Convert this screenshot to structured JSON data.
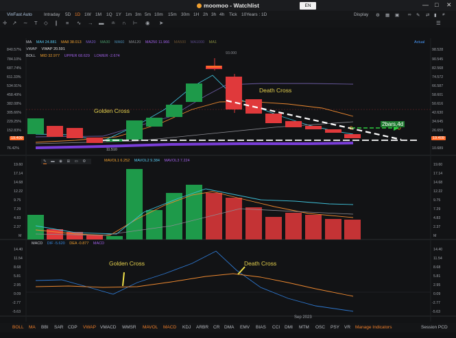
{
  "app": {
    "title": "moomoo - Watchlist",
    "lang_badge": "EN"
  },
  "header": {
    "stock_name": "VinFast Auto",
    "timeframes": [
      "Intraday",
      "5D",
      "1D",
      "1W",
      "1M",
      "1Q",
      "1Y",
      "1m",
      "3m",
      "5m",
      "10m",
      "15m",
      "30m",
      "1H",
      "2h",
      "3h",
      "4h",
      "Tick"
    ],
    "active_timeframe": "1D",
    "range_select": "10Years : 1D",
    "display_label": "Display"
  },
  "indicators": {
    "ma_label": "MA",
    "ma4": "MA4 24.881",
    "ma8": "MA8 38.013",
    "ma_greyed": [
      "MA20",
      "MA30",
      "MA60",
      "MA120"
    ],
    "ma250": "MA250 11.966",
    "ma_greyed2": [
      "MA500",
      "MA1000",
      "MA1"
    ],
    "actual_label": "Actual",
    "vwap_label": "VWAP",
    "vwap_value": "VWAP 20.591",
    "boll_label": "BOLL",
    "boll_mid": "MID 32.977",
    "boll_upper": "UPPER 68.629",
    "boll_lower": "LOWER -2.674",
    "mavol_label": "MAVOL1 6.252",
    "mavol2": "MAVOL2 9.384",
    "mavol3": "MAVOL3 7.224",
    "macd_label": "MACD",
    "dif": "DIF -5.620",
    "dea": "DEA -0.877",
    "macd_value": "MACD"
  },
  "price_axis_left": [
    "840.57%",
    "784.10%",
    "687.74%",
    "611.33%",
    "534.91%",
    "458.49%",
    "382.08%",
    "305.66%",
    "229.25%",
    "152.83%",
    "76.42%"
  ],
  "price_axis_right": [
    "98.528",
    "90.545",
    "82.568",
    "74.572",
    "66.587",
    "58.601",
    "50.616",
    "42.630",
    "34.645",
    "26.659",
    "18.674",
    "10.689"
  ],
  "price_tags": {
    "left": "19.409",
    "right": "19.409"
  },
  "price_marker": "93.000",
  "low_marker": "11.510",
  "vol_axis": [
    "19.60",
    "17.14",
    "14.68",
    "12.22",
    "9.75",
    "7.29",
    "4.83",
    "2.37",
    "M"
  ],
  "macd_axis": [
    "14.40",
    "11.54",
    "8.68",
    "5.81",
    "2.95",
    "0.09",
    "-2.77",
    "-5.63"
  ],
  "annotations": {
    "golden_cross_top": "Golden Cross",
    "death_cross_top": "Death Cross",
    "golden_cross_macd": "Golden Cross",
    "death_cross_macd": "Death Cross",
    "bars": "2bars,4d"
  },
  "xaxis_label": "Sep 2023",
  "bottom_indicators": [
    "BOLL",
    "MA",
    "BBI",
    "SAR",
    "CDP",
    "VWAP",
    "VMACD",
    "WMSR",
    "MAVOL",
    "MACD",
    "KDJ",
    "ARBR",
    "CR",
    "DMA",
    "EMV",
    "BIAS",
    "CCI",
    "DMI",
    "MTM",
    "OSC",
    "PSY",
    "VR"
  ],
  "bottom_active": [
    "BOLL",
    "MA",
    "VWAP",
    "MAVOL",
    "MACD"
  ],
  "manage_indicators": "Manage Indicators",
  "session": "Session PCD",
  "colors": {
    "up": "#1e9a4a",
    "down": "#e0393b",
    "accent": "#f07f2a"
  }
}
